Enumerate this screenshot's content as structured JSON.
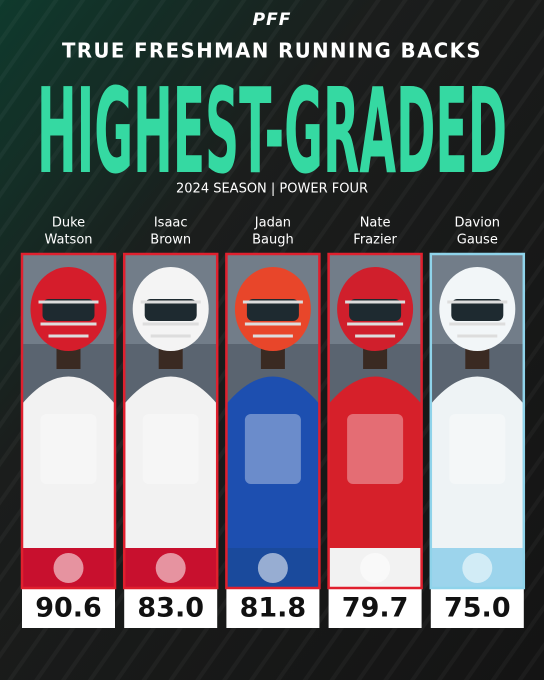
{
  "header": {
    "logo": "PFF",
    "subtitle": "TRUE FRESHMAN RUNNING BACKS",
    "title": "HIGHEST-GRADED",
    "season": "2024 SEASON | POWER FOUR"
  },
  "players": [
    {
      "first": "Duke",
      "last": "Watson",
      "grade": "90.6",
      "color": "#e0202e",
      "jersey": "#f2f2f2",
      "helmet": "#d51d2b",
      "logo_color": "#c8102e"
    },
    {
      "first": "Isaac",
      "last": "Brown",
      "grade": "83.0",
      "color": "#e0202e",
      "jersey": "#f2f2f2",
      "helmet": "#f4f4f4",
      "logo_color": "#c8102e"
    },
    {
      "first": "Jadan",
      "last": "Baugh",
      "grade": "81.8",
      "color": "#e0202e",
      "jersey": "#1d4fb0",
      "helmet": "#e8462a",
      "logo_color": "#1a4a9c"
    },
    {
      "first": "Nate",
      "last": "Frazier",
      "grade": "79.7",
      "color": "#e0202e",
      "jersey": "#d6202a",
      "helmet": "#d01f2c",
      "logo_color": "#f2f2f2"
    },
    {
      "first": "Davion",
      "last": "Gause",
      "grade": "75.0",
      "color": "#8fd3ea",
      "jersey": "#eef3f5",
      "helmet": "#f2f6f8",
      "logo_color": "#9cd4ec"
    }
  ]
}
